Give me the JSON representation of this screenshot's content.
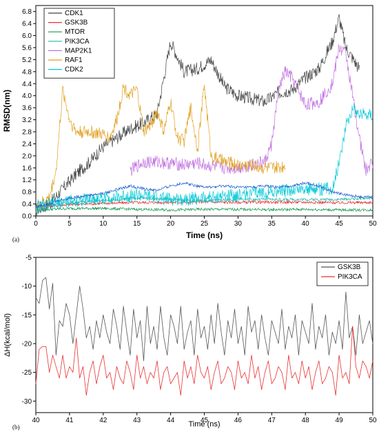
{
  "chart_data": [
    {
      "type": "line",
      "panel_label": "(a)",
      "xlabel": "Time (ns)",
      "ylabel": "RMSD(nm)",
      "xlim": [
        0,
        50
      ],
      "ylim": [
        0,
        7.0
      ],
      "xticks": [
        0,
        5,
        10,
        15,
        20,
        25,
        30,
        35,
        40,
        45,
        50
      ],
      "yticks": [
        0.0,
        0.4,
        0.8,
        1.2,
        1.6,
        2.0,
        2.4,
        2.8,
        3.2,
        3.6,
        4.0,
        4.4,
        4.8,
        5.2,
        5.6,
        6.0,
        6.4,
        6.8
      ],
      "ytick_labels": [
        "0.0",
        "0.4",
        "0.8",
        "1.2",
        "1.6",
        "2.0",
        "2.4",
        "2.8",
        "3.2",
        "3.6",
        "4.0",
        "4.4",
        "4.8",
        "5.2",
        "5.6",
        "6.0",
        "6.4",
        "6.8"
      ],
      "legend_position": "top-left",
      "grid": false,
      "series": [
        {
          "name": "CDK1",
          "color": "#404040",
          "x": [
            0,
            2,
            4,
            6,
            8,
            10,
            12,
            14,
            16,
            18,
            19.5,
            20,
            22,
            24,
            26,
            28,
            30,
            32,
            34,
            36,
            38,
            40,
            42,
            44,
            45,
            46,
            48,
            50
          ],
          "y": [
            0.2,
            0.4,
            0.9,
            1.4,
            1.8,
            2.3,
            2.6,
            2.9,
            3.1,
            3.4,
            5.2,
            5.8,
            4.8,
            4.9,
            5.2,
            4.3,
            4.0,
            3.9,
            3.8,
            4.1,
            4.2,
            4.6,
            4.9,
            5.8,
            6.6,
            5.6,
            4.9,
            5.0
          ],
          "x_end": 48
        },
        {
          "name": "GSK3B",
          "color": "#e83030",
          "x": [
            0,
            5,
            10,
            15,
            20,
            25,
            30,
            35,
            40,
            45,
            50
          ],
          "y": [
            0.3,
            0.38,
            0.42,
            0.45,
            0.45,
            0.47,
            0.45,
            0.46,
            0.46,
            0.44,
            0.45
          ]
        },
        {
          "name": "MTOR",
          "color": "#1a9a50",
          "x": [
            0,
            5,
            10,
            15,
            20,
            25,
            30,
            35,
            40,
            45,
            50
          ],
          "y": [
            0.2,
            0.25,
            0.25,
            0.22,
            0.2,
            0.22,
            0.22,
            0.21,
            0.22,
            0.2,
            0.2
          ]
        },
        {
          "name": "PIK3CA",
          "color": "#22b8b0",
          "x": [
            0,
            5,
            10,
            15,
            20,
            25,
            30,
            35,
            40,
            45,
            50
          ],
          "y": [
            0.3,
            0.45,
            0.5,
            0.6,
            0.55,
            0.5,
            0.55,
            0.55,
            0.55,
            0.55,
            0.6
          ]
        },
        {
          "name": "MAP2K1",
          "color": "#c070e0",
          "x": [
            14,
            16,
            18,
            20,
            22,
            24,
            26,
            28,
            30,
            32,
            34,
            35,
            36,
            37,
            38,
            40,
            42,
            44,
            45,
            46,
            48,
            49,
            50
          ],
          "y": [
            1.5,
            1.8,
            1.8,
            1.75,
            1.7,
            1.75,
            1.65,
            1.6,
            1.6,
            1.7,
            1.8,
            2.4,
            4.2,
            4.8,
            4.6,
            3.7,
            3.8,
            4.4,
            5.6,
            5.4,
            2.6,
            1.5,
            1.8
          ]
        },
        {
          "name": "RAF1",
          "color": "#e0a020",
          "x": [
            0,
            2,
            3,
            4,
            5,
            6,
            8,
            10,
            11,
            12,
            13,
            14,
            15,
            16,
            17,
            18,
            19,
            20,
            21,
            22,
            23,
            24,
            25,
            26,
            28,
            30,
            32,
            34,
            36,
            37
          ],
          "y": [
            0.3,
            0.6,
            1.5,
            4.2,
            3.2,
            2.8,
            2.8,
            2.7,
            2.6,
            3.2,
            4.3,
            4.0,
            4.2,
            2.8,
            3.0,
            3.5,
            2.8,
            3.8,
            2.6,
            2.5,
            3.6,
            2.2,
            4.4,
            2.0,
            1.8,
            1.7,
            1.7,
            1.6,
            1.6,
            1.7
          ],
          "x_end": 37
        },
        {
          "name": "CDK2",
          "color": "#00c8d8",
          "x": [
            0,
            5,
            10,
            15,
            20,
            25,
            30,
            35,
            40,
            42,
            44,
            45,
            46,
            47,
            48,
            49,
            50
          ],
          "y": [
            0.3,
            0.5,
            0.6,
            0.7,
            0.55,
            0.6,
            0.7,
            0.8,
            0.9,
            0.9,
            0.9,
            1.8,
            3.0,
            3.6,
            3.4,
            3.4,
            3.4
          ]
        },
        {
          "name": "",
          "color": "#1f5fd0",
          "x": [
            0,
            5,
            10,
            14,
            16,
            18,
            20,
            22,
            24,
            26,
            28,
            30,
            32,
            34,
            36,
            38,
            40,
            42,
            44,
            46,
            48,
            50
          ],
          "y": [
            0.3,
            0.6,
            0.75,
            1.0,
            0.9,
            0.85,
            1.0,
            1.1,
            1.0,
            0.95,
            1.0,
            0.95,
            0.95,
            1.0,
            0.95,
            1.0,
            1.1,
            1.0,
            0.8,
            0.7,
            0.65,
            0.62
          ]
        }
      ]
    },
    {
      "type": "line",
      "panel_label": "(b)",
      "xlabel": "Time (ns)",
      "ylabel": "ΔH(kcal/mol)",
      "xlim": [
        40,
        50
      ],
      "ylim": [
        -32,
        -5
      ],
      "xticks": [
        40,
        41,
        42,
        43,
        44,
        45,
        46,
        47,
        48,
        49,
        50
      ],
      "yticks": [
        -30,
        -25,
        -20,
        -15,
        -10,
        -5
      ],
      "legend_position": "top-right",
      "grid": false,
      "series": [
        {
          "name": "GSK3B",
          "color": "#555555",
          "x": [
            40,
            40.1,
            40.2,
            40.3,
            40.4,
            40.5,
            40.6,
            40.7,
            40.8,
            40.9,
            41,
            41.1,
            41.2,
            41.3,
            41.4,
            41.5,
            41.6,
            41.7,
            41.8,
            41.9,
            42,
            42.1,
            42.2,
            42.3,
            42.4,
            42.5,
            42.6,
            42.7,
            42.8,
            42.9,
            43,
            43.1,
            43.2,
            43.3,
            43.4,
            43.5,
            43.6,
            43.7,
            43.8,
            43.9,
            44,
            44.1,
            44.2,
            44.3,
            44.4,
            44.5,
            44.6,
            44.7,
            44.8,
            44.9,
            45,
            45.1,
            45.2,
            45.3,
            45.4,
            45.5,
            45.6,
            45.7,
            45.8,
            45.9,
            46,
            46.1,
            46.2,
            46.3,
            46.4,
            46.5,
            46.6,
            46.7,
            46.8,
            46.9,
            47,
            47.1,
            47.2,
            47.3,
            47.4,
            47.5,
            47.6,
            47.7,
            47.8,
            47.9,
            48,
            48.1,
            48.2,
            48.3,
            48.4,
            48.5,
            48.6,
            48.7,
            48.8,
            48.9,
            49,
            49.1,
            49.2,
            49.3,
            49.4,
            49.5,
            49.6,
            49.7,
            49.8,
            49.9,
            50
          ],
          "y": [
            -12,
            -13,
            -9,
            -8.5,
            -14,
            -9.5,
            -22,
            -16,
            -17,
            -13,
            -15,
            -20,
            -15,
            -10,
            -14,
            -19,
            -17,
            -21,
            -16,
            -19,
            -15,
            -18,
            -20,
            -14,
            -17,
            -21,
            -13.5,
            -18,
            -22,
            -14,
            -19,
            -16,
            -23,
            -13.5,
            -20,
            -17,
            -21,
            -13.5,
            -19,
            -22,
            -15,
            -17,
            -20,
            -13.5,
            -21,
            -18,
            -16,
            -22,
            -14,
            -19,
            -17,
            -21,
            -15,
            -20,
            -13,
            -18,
            -22,
            -16,
            -19,
            -14,
            -20,
            -17,
            -22,
            -13.5,
            -18,
            -16,
            -21,
            -15,
            -19,
            -22,
            -16,
            -18,
            -20,
            -14,
            -21,
            -17,
            -19,
            -15,
            -22,
            -16,
            -18,
            -20,
            -13,
            -21,
            -17,
            -19,
            -15,
            -22,
            -18,
            -20,
            -16,
            -21,
            -11,
            -19,
            -17,
            -22,
            -15,
            -20,
            -18,
            -16,
            -20
          ]
        },
        {
          "name": "PIK3CA",
          "color": "#e83030",
          "x": [
            40,
            40.1,
            40.2,
            40.3,
            40.4,
            40.5,
            40.6,
            40.7,
            40.8,
            40.9,
            41,
            41.1,
            41.2,
            41.3,
            41.4,
            41.5,
            41.6,
            41.7,
            41.8,
            41.9,
            42,
            42.1,
            42.2,
            42.3,
            42.4,
            42.5,
            42.6,
            42.7,
            42.8,
            42.9,
            43,
            43.1,
            43.2,
            43.3,
            43.4,
            43.5,
            43.6,
            43.7,
            43.8,
            43.9,
            44,
            44.1,
            44.2,
            44.3,
            44.4,
            44.5,
            44.6,
            44.7,
            44.8,
            44.9,
            45,
            45.1,
            45.2,
            45.3,
            45.4,
            45.5,
            45.6,
            45.7,
            45.8,
            45.9,
            46,
            46.1,
            46.2,
            46.3,
            46.4,
            46.5,
            46.6,
            46.7,
            46.8,
            46.9,
            47,
            47.1,
            47.2,
            47.3,
            47.4,
            47.5,
            47.6,
            47.7,
            47.8,
            47.9,
            48,
            48.1,
            48.2,
            48.3,
            48.4,
            48.5,
            48.6,
            48.7,
            48.8,
            48.9,
            49,
            49.1,
            49.2,
            49.3,
            49.4,
            49.5,
            49.6,
            49.7,
            49.8,
            49.9,
            50
          ],
          "y": [
            -27,
            -21,
            -20.5,
            -20.5,
            -25,
            -22,
            -24,
            -26,
            -22,
            -26,
            -24,
            -25,
            -19,
            -26,
            -24,
            -29,
            -25,
            -23,
            -27,
            -24,
            -22,
            -26,
            -25,
            -28,
            -24,
            -26,
            -27,
            -23,
            -25,
            -28,
            -22,
            -26,
            -24,
            -27,
            -25,
            -26,
            -23,
            -28,
            -25,
            -24,
            -27,
            -26,
            -25,
            -29,
            -23,
            -26,
            -24,
            -27,
            -22,
            -25,
            -26,
            -24,
            -28,
            -25,
            -23,
            -27,
            -26,
            -24,
            -25,
            -28,
            -23,
            -26,
            -25,
            -27,
            -22,
            -26,
            -24,
            -28,
            -25,
            -23,
            -27,
            -26,
            -24,
            -25,
            -28,
            -22,
            -26,
            -25,
            -27,
            -23,
            -26,
            -24,
            -28,
            -25,
            -23,
            -27,
            -26,
            -24,
            -25,
            -29,
            -22,
            -26,
            -25,
            -27,
            -17,
            -24,
            -26,
            -23,
            -24,
            -26,
            -23
          ]
        }
      ]
    }
  ]
}
